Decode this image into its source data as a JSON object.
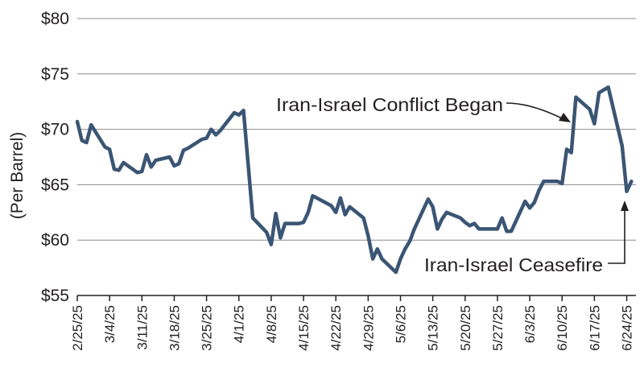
{
  "chart_data": {
    "type": "line",
    "ylabel": "(Per Barrel)",
    "ylim": [
      55,
      80
    ],
    "yticks": [
      55,
      60,
      65,
      70,
      75,
      80
    ],
    "ytick_labels": [
      "$55",
      "$60",
      "$65",
      "$70",
      "$75",
      "$80"
    ],
    "xlim": [
      "2025-02-25",
      "2025-06-26"
    ],
    "xticks": [
      "2025-02-25",
      "2025-03-04",
      "2025-03-11",
      "2025-03-18",
      "2025-03-25",
      "2025-04-01",
      "2025-04-08",
      "2025-04-15",
      "2025-04-22",
      "2025-04-29",
      "2025-05-06",
      "2025-05-13",
      "2025-05-20",
      "2025-05-27",
      "2025-06-03",
      "2025-06-10",
      "2025-06-17",
      "2025-06-24"
    ],
    "xtick_labels": [
      "2/25/25",
      "3/4/25",
      "3/11/25",
      "3/18/25",
      "3/25/25",
      "4/1/25",
      "4/8/25",
      "4/15/25",
      "4/22/25",
      "4/29/25",
      "5/6/25",
      "5/13/25",
      "5/20/25",
      "5/27/25",
      "6/3/25",
      "6/10/25",
      "6/17/25",
      "6/24/25"
    ],
    "grid": true,
    "color": "#3b5574",
    "series": [
      {
        "x": [
          "2025-02-25",
          "2025-02-26",
          "2025-02-27",
          "2025-02-28",
          "2025-03-03",
          "2025-03-04",
          "2025-03-05",
          "2025-03-06",
          "2025-03-07",
          "2025-03-10",
          "2025-03-11",
          "2025-03-12",
          "2025-03-13",
          "2025-03-14",
          "2025-03-17",
          "2025-03-18",
          "2025-03-19",
          "2025-03-20",
          "2025-03-21",
          "2025-03-24",
          "2025-03-25",
          "2025-03-26",
          "2025-03-27",
          "2025-03-28",
          "2025-03-31",
          "2025-04-01",
          "2025-04-02",
          "2025-04-03",
          "2025-04-04",
          "2025-04-07",
          "2025-04-08",
          "2025-04-09",
          "2025-04-10",
          "2025-04-11",
          "2025-04-14",
          "2025-04-15",
          "2025-04-16",
          "2025-04-17",
          "2025-04-21",
          "2025-04-22",
          "2025-04-23",
          "2025-04-24",
          "2025-04-25",
          "2025-04-28",
          "2025-04-29",
          "2025-04-30",
          "2025-05-01",
          "2025-05-02",
          "2025-05-05",
          "2025-05-06",
          "2025-05-07",
          "2025-05-08",
          "2025-05-09",
          "2025-05-12",
          "2025-05-13",
          "2025-05-14",
          "2025-05-15",
          "2025-05-16",
          "2025-05-19",
          "2025-05-20",
          "2025-05-21",
          "2025-05-22",
          "2025-05-23",
          "2025-05-27",
          "2025-05-28",
          "2025-05-29",
          "2025-05-30",
          "2025-06-02",
          "2025-06-03",
          "2025-06-04",
          "2025-06-05",
          "2025-06-06",
          "2025-06-09",
          "2025-06-10",
          "2025-06-11",
          "2025-06-12",
          "2025-06-13",
          "2025-06-16",
          "2025-06-17",
          "2025-06-18",
          "2025-06-20",
          "2025-06-23",
          "2025-06-24",
          "2025-06-25"
        ],
        "y": [
          70.7,
          69.0,
          68.8,
          70.4,
          68.4,
          68.2,
          66.4,
          66.3,
          67.0,
          66.1,
          66.2,
          67.7,
          66.6,
          67.2,
          67.5,
          66.7,
          66.9,
          68.1,
          68.3,
          69.1,
          69.2,
          70.0,
          69.5,
          69.9,
          71.5,
          71.3,
          71.7,
          66.9,
          62.0,
          60.7,
          59.6,
          62.4,
          60.2,
          61.5,
          61.5,
          61.6,
          62.5,
          64.0,
          63.1,
          62.5,
          63.8,
          62.3,
          63.0,
          62.0,
          60.4,
          58.3,
          59.2,
          58.3,
          57.1,
          58.3,
          59.2,
          59.9,
          61.0,
          63.7,
          63.0,
          61.0,
          61.9,
          62.5,
          62.0,
          61.6,
          61.3,
          61.5,
          61.0,
          61.0,
          62.0,
          60.8,
          60.8,
          63.5,
          62.9,
          63.4,
          64.5,
          65.3,
          65.3,
          65.1,
          68.2,
          67.9,
          72.9,
          71.8,
          70.5,
          73.3,
          73.8,
          68.5,
          64.4,
          65.3
        ]
      }
    ],
    "annotations": [
      {
        "text": "Iran-Israel Conflict Began",
        "x": "2025-06-12",
        "y": 70.6
      },
      {
        "text": "Iran-Israel Ceasefire",
        "x": "2025-06-24",
        "y": 64.6
      }
    ]
  }
}
